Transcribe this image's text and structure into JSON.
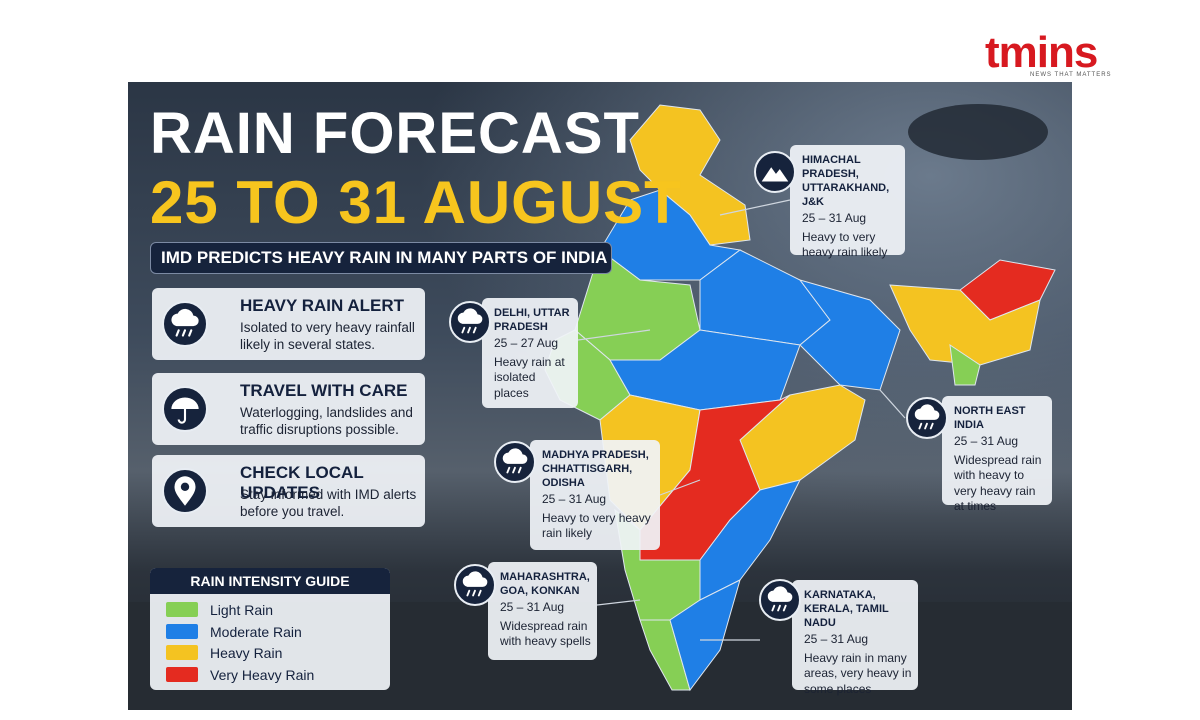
{
  "logo": {
    "name": "tmins",
    "tagline": "NEWS THAT MATTERS"
  },
  "header": {
    "title": "RAIN FORECAST",
    "dates": "25 TO 31 AUGUST",
    "subtitle": "IMD PREDICTS HEAVY RAIN IN MANY PARTS OF INDIA"
  },
  "alerts": [
    {
      "title": "HEAVY RAIN ALERT",
      "text": "Isolated to very heavy rainfall likely in several states."
    },
    {
      "title": "TRAVEL WITH CARE",
      "text": "Waterlogging, landslides and traffic disruptions possible."
    },
    {
      "title": "CHECK LOCAL UPDATES",
      "text": "Stay informed with IMD alerts before you travel."
    }
  ],
  "legend": {
    "title": "RAIN INTENSITY GUIDE",
    "items": [
      {
        "label": "Light Rain",
        "color": "#86cf55"
      },
      {
        "label": "Moderate Rain",
        "color": "#1f7fe6"
      },
      {
        "label": "Heavy Rain",
        "color": "#f4c321"
      },
      {
        "label": "Very Heavy Rain",
        "color": "#e42b20"
      }
    ]
  },
  "regions": [
    {
      "name": "HIMACHAL PRADESH, UTTARAKHAND, J&K",
      "dates": "25 – 31 Aug",
      "text": "Heavy to very heavy rain likely"
    },
    {
      "name": "DELHI, UTTAR PRADESH",
      "dates": "25 – 27 Aug",
      "text": "Heavy rain at isolated places"
    },
    {
      "name": "NORTH EAST INDIA",
      "dates": "25 – 31 Aug",
      "text": "Widespread rain with heavy to very heavy rain at times"
    },
    {
      "name": "MADHYA PRADESH, CHHATTISGARH, ODISHA",
      "dates": "25 – 31 Aug",
      "text": "Heavy to very heavy rain likely"
    },
    {
      "name": "MAHARASHTRA, GOA, KONKAN",
      "dates": "25 – 31 Aug",
      "text": "Widespread rain with heavy spells"
    },
    {
      "name": "KARNATAKA, KERALA, TAMIL NADU",
      "dates": "25 – 31 Aug",
      "text": "Heavy rain in many areas, very heavy in some places"
    }
  ]
}
